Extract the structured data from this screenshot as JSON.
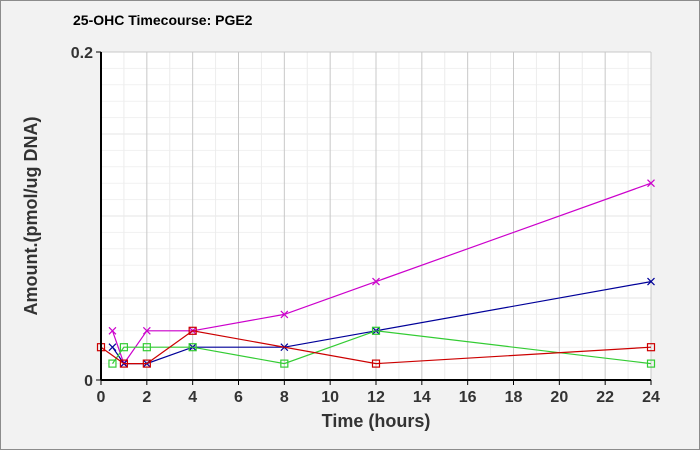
{
  "chart_data": {
    "type": "line",
    "title": "25-OHC Timecourse: PGE2",
    "xlabel": "Time (hours)",
    "ylabel": "Amount.(pmol/ug DNA)",
    "xlim": [
      0,
      24
    ],
    "ylim": [
      0,
      0.2
    ],
    "x_ticks": [
      "0",
      "2",
      "4",
      "6",
      "8",
      "10",
      "12",
      "14",
      "16",
      "18",
      "20",
      "22",
      "24"
    ],
    "y_ticks": [
      "0",
      "0.2"
    ],
    "grid": true,
    "legend": "none",
    "series": [
      {
        "color": "#cc00cc",
        "marker": "x",
        "x": [
          0.5,
          1,
          2,
          4,
          8,
          12,
          24
        ],
        "values": [
          0.03,
          0.01,
          0.03,
          0.03,
          0.04,
          0.06,
          0.12
        ]
      },
      {
        "color": "#000099",
        "marker": "x",
        "x": [
          0.5,
          1,
          2,
          4,
          8,
          12,
          24
        ],
        "values": [
          0.02,
          0.01,
          0.01,
          0.02,
          0.02,
          0.03,
          0.06
        ]
      },
      {
        "color": "#33cc33",
        "marker": "square",
        "x": [
          0.5,
          1,
          2,
          4,
          8,
          12,
          24
        ],
        "values": [
          0.01,
          0.02,
          0.02,
          0.02,
          0.01,
          0.03,
          0.01
        ]
      },
      {
        "color": "#cc0000",
        "marker": "square",
        "x": [
          0,
          1,
          2,
          4,
          12,
          24
        ],
        "values": [
          0.02,
          0.01,
          0.01,
          0.03,
          0.01,
          0.02
        ]
      }
    ]
  }
}
